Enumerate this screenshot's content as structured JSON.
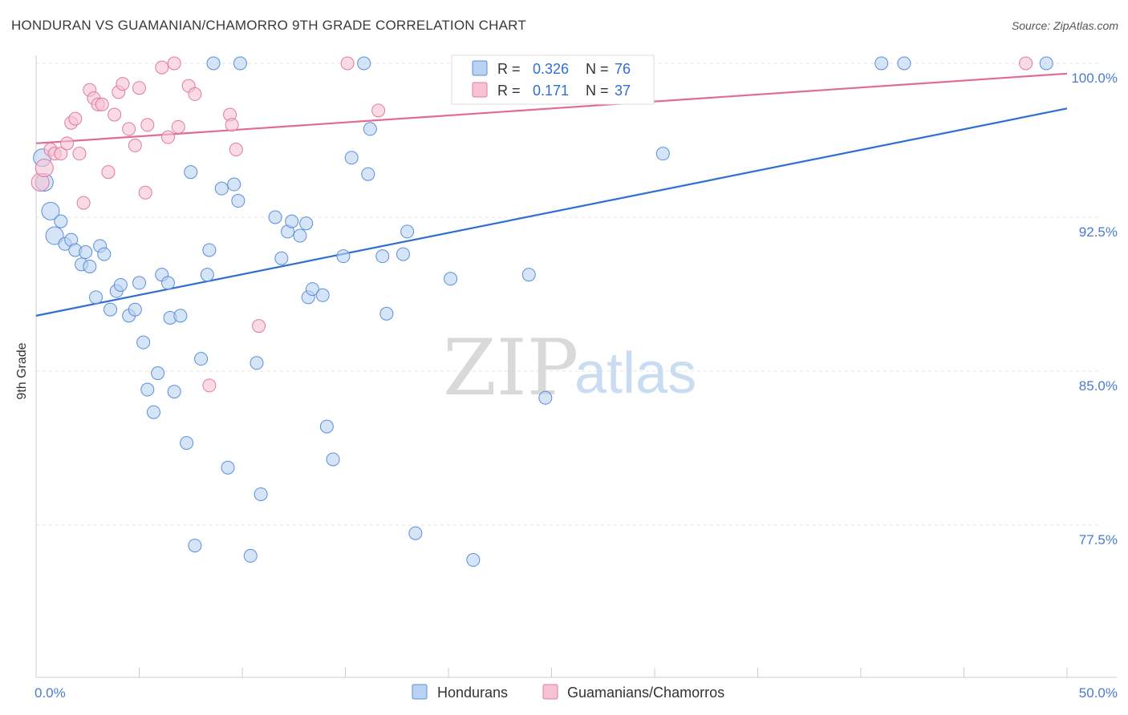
{
  "title": "HONDURAN VS GUAMANIAN/CHAMORRO 9TH GRADE CORRELATION CHART",
  "source": "Source: ZipAtlas.com",
  "watermark": {
    "zip": "ZIP",
    "atlas": "atlas"
  },
  "colors": {
    "blue": "#5b8fd6",
    "blue_fill": "#b9d2f2",
    "pink": "#e07aa0",
    "pink_fill": "#f7c3d3",
    "blue_line": "#2f6fd0",
    "pink_line": "#e06b95",
    "tick_text": "#4a7bd0"
  },
  "legend": {
    "r_label": "R =",
    "n_label": "N =",
    "rows": [
      {
        "r": "0.326",
        "n": "76"
      },
      {
        "r": "0.171",
        "n": "37"
      }
    ]
  },
  "chart_data": {
    "type": "scatter",
    "title": "HONDURAN VS GUAMANIAN/CHAMORRO 9TH GRADE CORRELATION CHART",
    "xlabel": "",
    "ylabel": "9th Grade",
    "xlim": [
      0,
      50
    ],
    "ylim": [
      70.0,
      101.0
    ],
    "x_tick_labels": [
      "0.0%",
      "50.0%"
    ],
    "y_ticks": [
      77.5,
      85.0,
      92.5,
      100.0
    ],
    "y_tick_labels": [
      "77.5%",
      "85.0%",
      "92.5%",
      "100.0%"
    ],
    "grid": true,
    "legend_position": "top-center",
    "series": [
      {
        "name": "Hondurans",
        "color": "#5b8fd6",
        "trend": {
          "x": [
            0,
            50
          ],
          "y": [
            87.7,
            97.8
          ]
        },
        "points": [
          [
            0.3,
            95.4
          ],
          [
            0.4,
            94.2
          ],
          [
            0.7,
            92.8
          ],
          [
            0.9,
            91.6
          ],
          [
            1.2,
            92.3
          ],
          [
            1.4,
            91.2
          ],
          [
            1.7,
            91.4
          ],
          [
            1.9,
            90.9
          ],
          [
            2.2,
            90.2
          ],
          [
            2.4,
            90.8
          ],
          [
            2.6,
            90.1
          ],
          [
            2.9,
            88.6
          ],
          [
            3.1,
            91.1
          ],
          [
            3.3,
            90.7
          ],
          [
            3.6,
            88.0
          ],
          [
            3.9,
            88.9
          ],
          [
            4.1,
            89.2
          ],
          [
            4.5,
            87.7
          ],
          [
            4.8,
            88.0
          ],
          [
            5.0,
            89.3
          ],
          [
            5.2,
            86.4
          ],
          [
            5.4,
            84.1
          ],
          [
            5.7,
            83.0
          ],
          [
            5.9,
            84.9
          ],
          [
            6.1,
            89.7
          ],
          [
            6.4,
            89.3
          ],
          [
            6.5,
            87.6
          ],
          [
            6.7,
            84.0
          ],
          [
            7.0,
            87.7
          ],
          [
            7.3,
            81.5
          ],
          [
            7.5,
            94.7
          ],
          [
            7.7,
            76.5
          ],
          [
            8.0,
            85.6
          ],
          [
            8.3,
            89.7
          ],
          [
            8.4,
            90.9
          ],
          [
            8.6,
            100.0
          ],
          [
            9.0,
            93.9
          ],
          [
            9.3,
            80.3
          ],
          [
            9.6,
            94.1
          ],
          [
            9.8,
            93.3
          ],
          [
            9.9,
            100.0
          ],
          [
            10.4,
            76.0
          ],
          [
            10.7,
            85.4
          ],
          [
            10.9,
            79.0
          ],
          [
            11.6,
            92.5
          ],
          [
            11.9,
            90.5
          ],
          [
            12.2,
            91.8
          ],
          [
            12.4,
            92.3
          ],
          [
            12.8,
            91.6
          ],
          [
            13.1,
            92.2
          ],
          [
            13.2,
            88.6
          ],
          [
            13.4,
            89.0
          ],
          [
            13.9,
            88.7
          ],
          [
            14.1,
            82.3
          ],
          [
            14.4,
            80.7
          ],
          [
            14.9,
            90.6
          ],
          [
            15.3,
            95.4
          ],
          [
            15.9,
            100.0
          ],
          [
            16.1,
            94.6
          ],
          [
            16.2,
            96.8
          ],
          [
            16.8,
            90.6
          ],
          [
            17.0,
            87.8
          ],
          [
            17.8,
            90.7
          ],
          [
            18.0,
            91.8
          ],
          [
            18.4,
            77.1
          ],
          [
            20.1,
            89.5
          ],
          [
            21.2,
            75.8
          ],
          [
            23.9,
            89.7
          ],
          [
            24.7,
            83.7
          ],
          [
            28.1,
            100.0
          ],
          [
            30.4,
            95.6
          ],
          [
            41.0,
            100.0
          ],
          [
            42.1,
            100.0
          ],
          [
            49.0,
            100.0
          ]
        ]
      },
      {
        "name": "Guamanians/Chamorros",
        "color": "#e07aa0",
        "trend": {
          "x": [
            0,
            50
          ],
          "y": [
            96.1,
            99.5
          ]
        },
        "points": [
          [
            0.2,
            94.2
          ],
          [
            0.4,
            94.9
          ],
          [
            0.7,
            95.8
          ],
          [
            0.9,
            95.6
          ],
          [
            1.2,
            95.6
          ],
          [
            1.5,
            96.1
          ],
          [
            1.7,
            97.1
          ],
          [
            1.9,
            97.3
          ],
          [
            2.1,
            95.6
          ],
          [
            2.3,
            93.2
          ],
          [
            2.6,
            98.7
          ],
          [
            2.8,
            98.3
          ],
          [
            3.0,
            98.0
          ],
          [
            3.2,
            98.0
          ],
          [
            3.5,
            94.7
          ],
          [
            3.8,
            97.5
          ],
          [
            4.0,
            98.6
          ],
          [
            4.2,
            99.0
          ],
          [
            4.5,
            96.8
          ],
          [
            4.8,
            96.0
          ],
          [
            5.0,
            98.8
          ],
          [
            5.3,
            93.7
          ],
          [
            5.4,
            97.0
          ],
          [
            6.1,
            99.8
          ],
          [
            6.4,
            96.4
          ],
          [
            6.7,
            100.0
          ],
          [
            6.9,
            96.9
          ],
          [
            7.4,
            98.9
          ],
          [
            7.7,
            98.5
          ],
          [
            8.4,
            84.3
          ],
          [
            9.4,
            97.5
          ],
          [
            9.5,
            97.0
          ],
          [
            9.7,
            95.8
          ],
          [
            10.8,
            87.2
          ],
          [
            15.1,
            100.0
          ],
          [
            16.6,
            97.7
          ],
          [
            48.0,
            100.0
          ]
        ]
      }
    ]
  }
}
